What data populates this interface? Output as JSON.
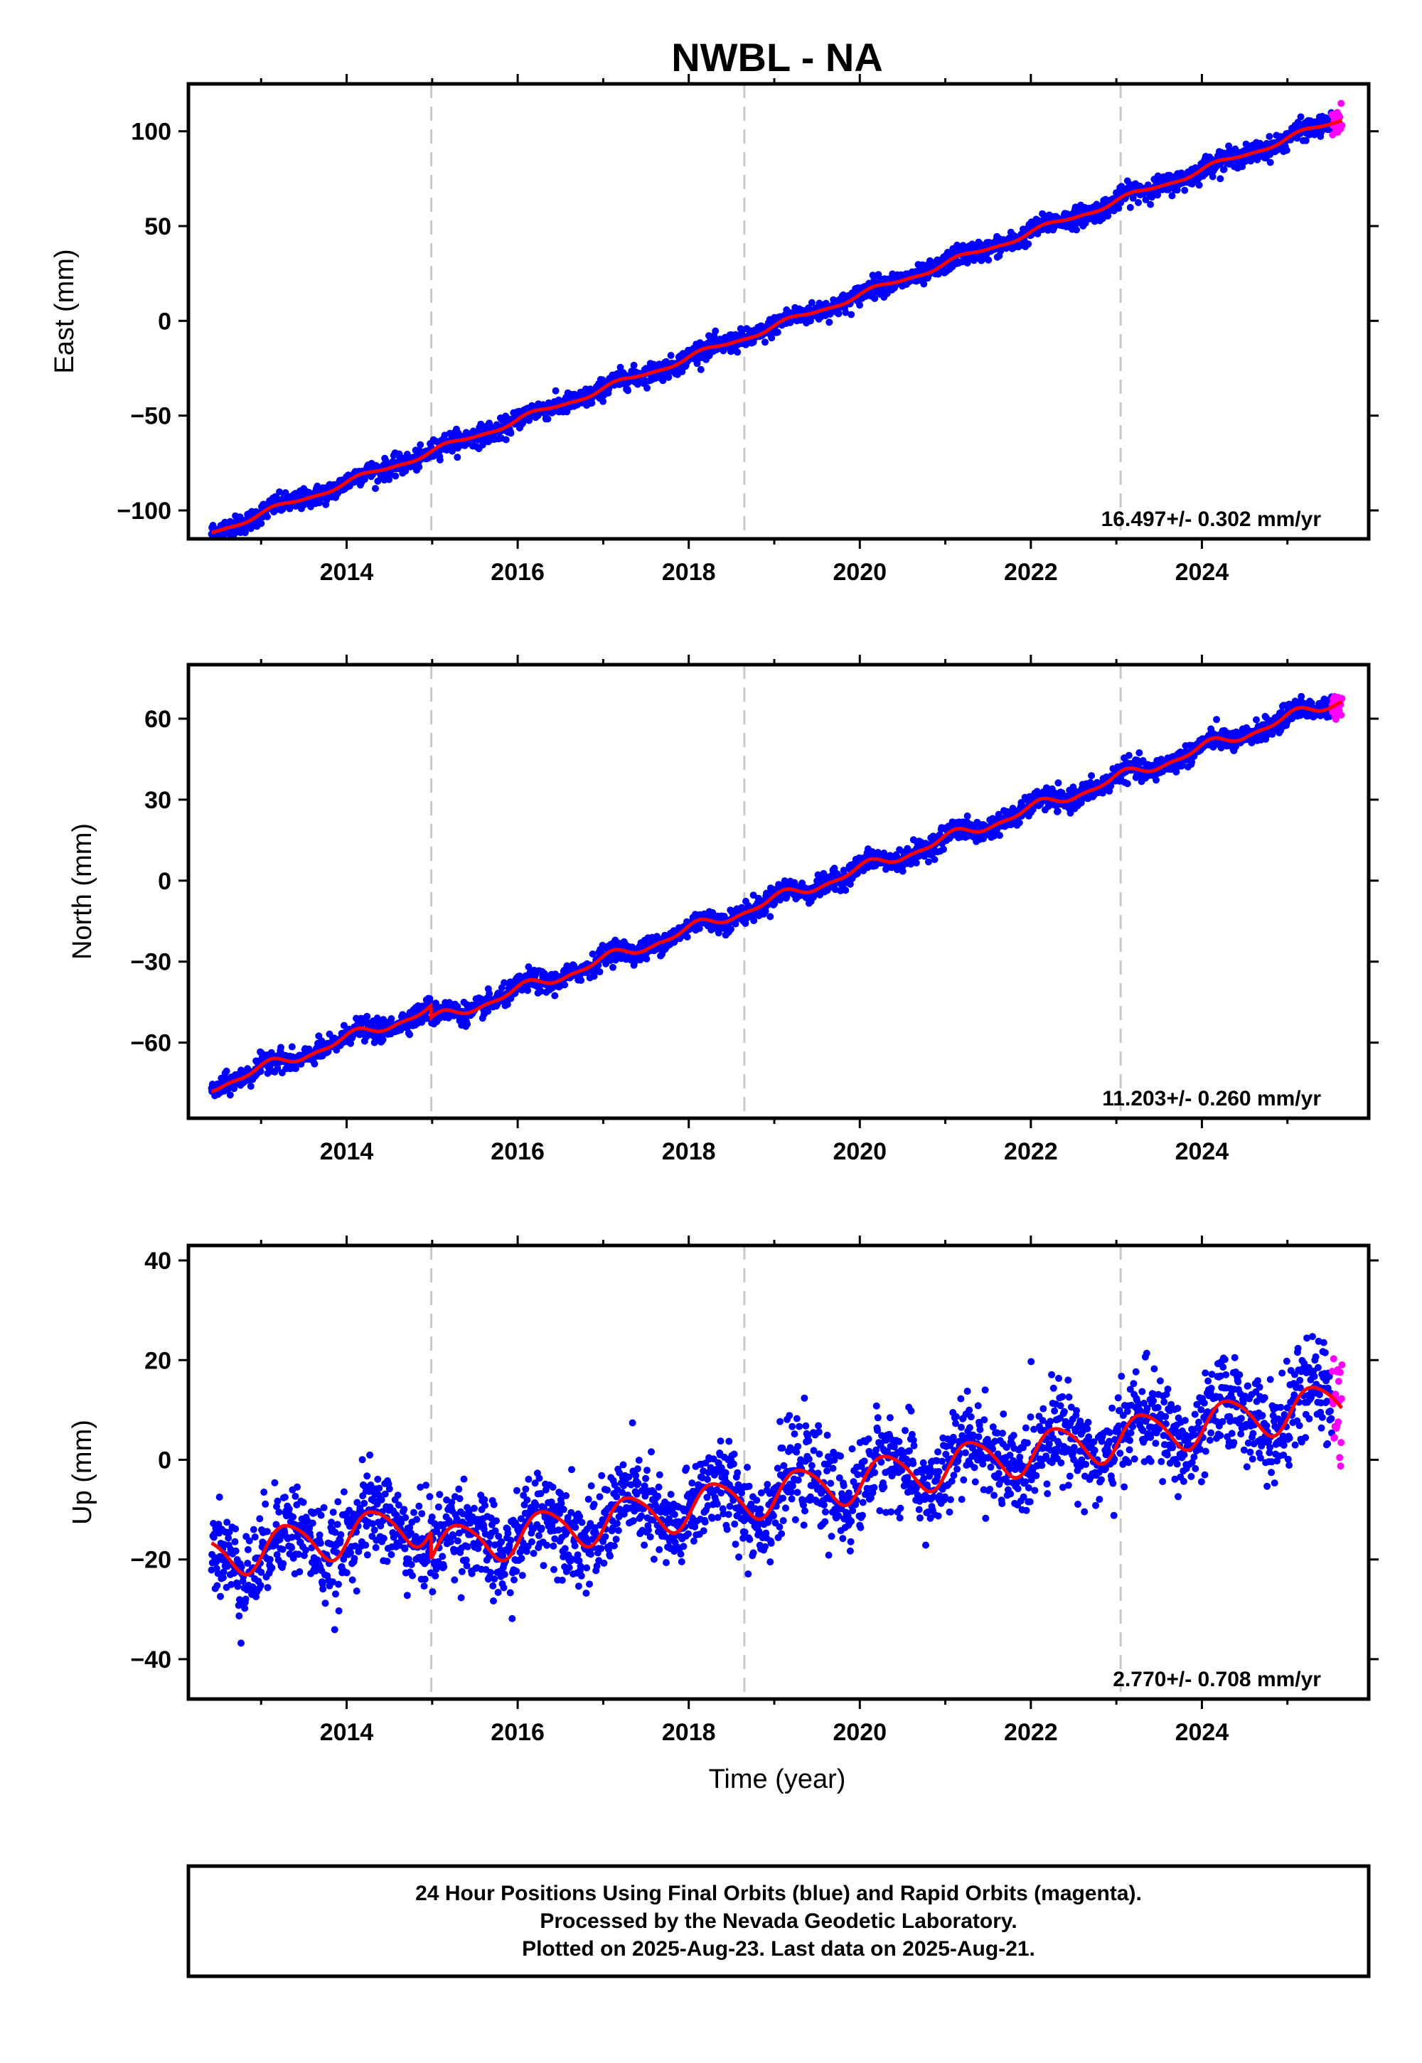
{
  "chart_data": {
    "type": "scatter",
    "title": "NWBL - NA",
    "xlabel": "Time (year)",
    "xlim": [
      2012.15,
      2025.95
    ],
    "x_ticks": [
      2014,
      2016,
      2018,
      2020,
      2022,
      2024
    ],
    "x_tick_labels": [
      "2014",
      "2016",
      "2018",
      "2020",
      "2022",
      "2024"
    ],
    "data_start": 2012.42,
    "rapid_start": 2025.52,
    "data_end": 2025.64,
    "equipment_changes": [
      2014.99,
      2018.65,
      2023.05
    ],
    "colors": {
      "final": "#0000ff",
      "rapid": "#ff00ff",
      "model": "#ff0000",
      "event_line": "#c8c8c8"
    },
    "legend": "none",
    "panels": [
      {
        "name": "east",
        "ylabel": "East (mm)",
        "ylim": [
          -115,
          125
        ],
        "yticks": [
          -100,
          -50,
          0,
          50,
          100
        ],
        "ytick_labels": [
          "−100",
          "−50",
          "0",
          "50",
          "100"
        ],
        "rate_text": "16.497+/- 0.302 mm/yr",
        "trend": {
          "rate": 16.497,
          "value_at_2020": 13.5
        },
        "seasonal": {
          "annual": 1.5,
          "semiannual": 0.5,
          "annual_phase": 0.3
        },
        "offsets": [],
        "scatter_sd": 2.6
      },
      {
        "name": "north",
        "ylabel": "North (mm)",
        "ylim": [
          -88,
          80
        ],
        "yticks": [
          -60,
          -30,
          0,
          30,
          60
        ],
        "ytick_labels": [
          "−60",
          "−30",
          "0",
          "30",
          "60"
        ],
        "rate_text": "11.203+/- 0.260 mm/yr",
        "trend": {
          "rate": 11.203,
          "value_at_2020": 8.5
        },
        "seasonal": {
          "annual": 1.8,
          "semiannual": 0.8,
          "annual_phase": 1.1
        },
        "offsets": [
          {
            "year": 2014.99,
            "size": 4.5
          }
        ],
        "scatter_sd": 1.9
      },
      {
        "name": "up",
        "ylabel": "Up (mm)",
        "ylim": [
          -48,
          43
        ],
        "yticks": [
          -40,
          -20,
          0,
          20,
          40
        ],
        "ytick_labels": [
          "−40",
          "−20",
          "0",
          "20",
          "40"
        ],
        "rate_text": "2.770+/- 0.708 mm/yr",
        "trend": {
          "rate": 2.77,
          "value_at_2020": 1.5
        },
        "seasonal": {
          "annual": 4.2,
          "semiannual": 0.6,
          "annual_phase": -0.4
        },
        "offsets": [
          {
            "year": 2014.99,
            "size": 5.5
          }
        ],
        "scatter_sd": 4.6
      }
    ]
  },
  "footer": {
    "line1": "24 Hour Positions Using Final Orbits (blue) and Rapid Orbits (magenta).",
    "line2": "Processed by the Nevada Geodetic Laboratory.",
    "line3": "Plotted on 2025-Aug-23. Last data on 2025-Aug-21."
  }
}
